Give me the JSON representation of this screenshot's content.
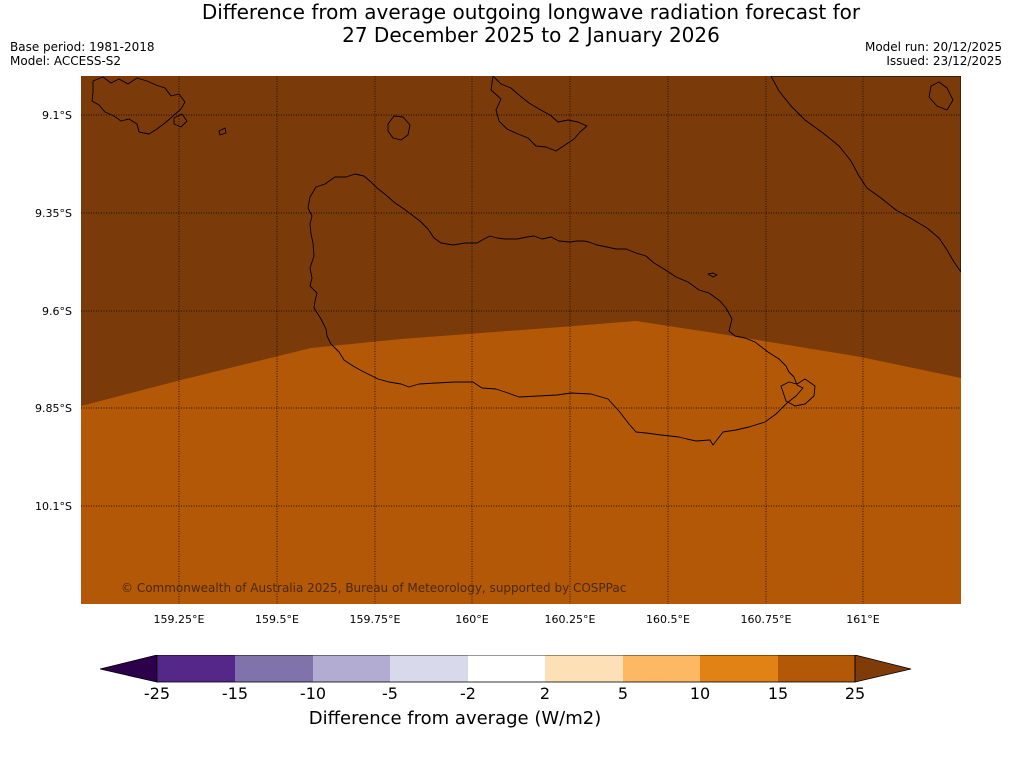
{
  "title": {
    "line1": "Difference from average outgoing longwave radiation forecast for",
    "line2": "27 December 2025 to 2 January 2026"
  },
  "info": {
    "base_period": "Base period: 1981-2018",
    "model": "Model: ACCESS-S2",
    "model_run": "Model run: 20/12/2025",
    "issued": "Issued: 23/12/2025"
  },
  "map": {
    "latitude_labels": [
      "9.1°S",
      "9.35°S",
      "9.6°S",
      "9.85°S",
      "10.1°S"
    ],
    "longitude_labels": [
      "159.25°E",
      "159.5°E",
      "159.75°E",
      "160°E",
      "160.25°E",
      "160.5°E",
      "160.75°E",
      "161°E"
    ],
    "copyright": "© Commonwealth of Australia 2025, Bureau of Meteorology, supported by COSPPac",
    "fill_colors": {
      "north_region": "#7b3a0a",
      "south_region": "#b35806"
    },
    "gridline_color": "#000000",
    "coastline_color": "#000000"
  },
  "colorbar": {
    "title": "Difference from average (W/m2)",
    "tick_labels": [
      "-25",
      "-15",
      "-10",
      "-5",
      "-2",
      "2",
      "5",
      "10",
      "15",
      "25"
    ],
    "colors": [
      "#2d004b",
      "#542788",
      "#8073ac",
      "#b2abd2",
      "#d8daeb",
      "#ffffff",
      "#fee0b6",
      "#fdb863",
      "#e08214",
      "#b35806",
      "#7f3b08"
    ]
  }
}
